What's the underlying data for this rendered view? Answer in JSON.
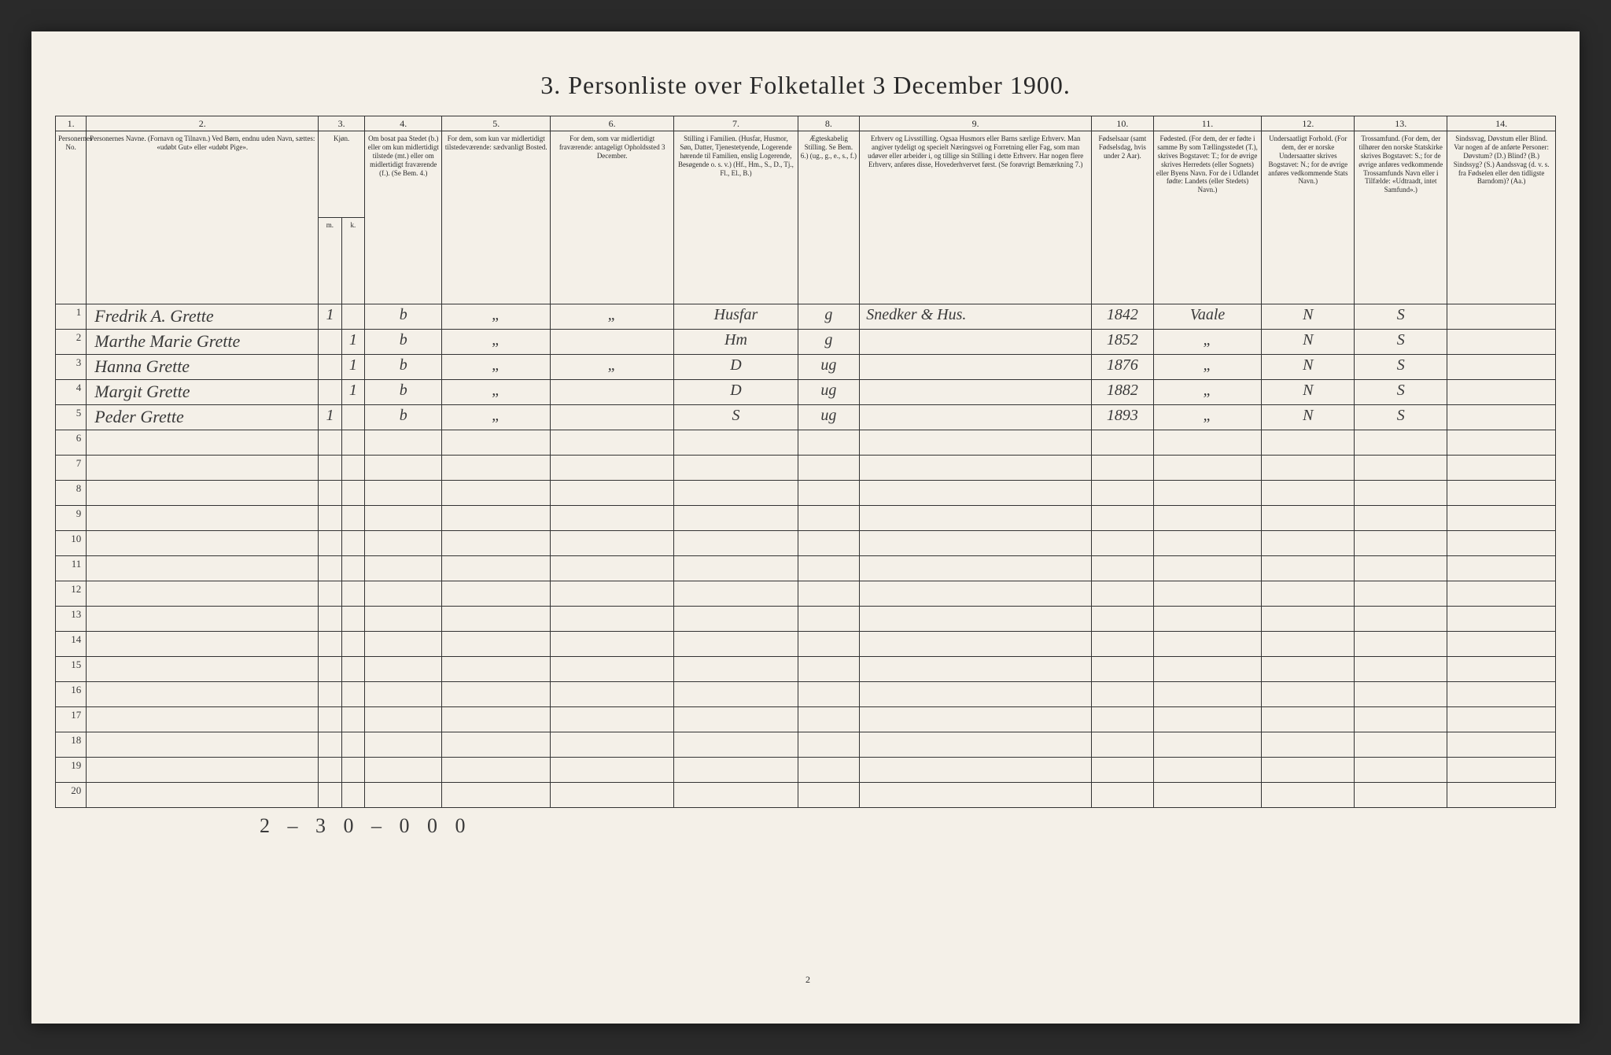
{
  "title": "3. Personliste over Folketallet 3 December 1900.",
  "page_number": "2",
  "footer_marks": "2 – 3   0 – 0    0   0",
  "col_numbers": [
    "1.",
    "2.",
    "3.",
    "4.",
    "5.",
    "6.",
    "7.",
    "8.",
    "9.",
    "10.",
    "11.",
    "12.",
    "13.",
    "14."
  ],
  "headers": {
    "c1": "Personernes No.",
    "c2": "Personernes Navne.\n(Fornavn og Tilnavn.)\nVed Børn, endnu uden Navn, sættes: «udøbt Gut» eller «udøbt Pige».",
    "c3": "Kjøn.",
    "c3a": "m.",
    "c3b": "k.",
    "c4": "Om bosat paa Stedet (b.) eller om kun midlertidigt tilstede (mt.) eller om midlertidigt fraværende (f.). (Se Bem. 4.)",
    "c5": "For dem, som kun var midlertidigt tilstedeværende: sædvanligt Bosted.",
    "c6": "For dem, som var midlertidigt fraværende: antageligt Opholdssted 3 December.",
    "c7": "Stilling i Familien.\n(Husfar, Husmor, Søn, Datter, Tjenestetyende, Logerende hørende til Familien, enslig Logerende, Besøgende o. s. v.)\n(Hf., Hm., S., D., Tj., Fl., El., B.)",
    "c8": "Ægteskabelig Stilling.\nSe Bem. 6.)\n(ug., g., e., s., f.)",
    "c9": "Erhverv og Livsstilling.\nOgsaa Husmors eller Barns særlige Erhverv.\nMan angiver tydeligt og specielt Næringsvei og Forretning eller Fag, som man udøver eller arbeider i, og tillige sin Stilling i dette Erhverv.\nHar nogen flere Erhverv, anføres disse, Hovederhvervet først.\n(Se forøvrigt Bemærkning 7.)",
    "c10": "Fødselsaar\n(samt Fødselsdag, hvis under 2 Aar).",
    "c11": "Fødested.\n(For dem, der er fødte i samme By som Tællingsstedet (T.), skrives Bogstavet: T.; for de øvrige skrives Herredets (eller Sognets) eller Byens Navn. For de i Udlandet fødte: Landets (eller Stedets) Navn.)",
    "c12": "Undersaatligt Forhold.\n(For dem, der er norske Undersaatter skrives Bogstavet: N.; for de øvrige anføres vedkommende Stats Navn.)",
    "c13": "Trossamfund.\n(For dem, der tilhører den norske Statskirke skrives Bogstavet: S.; for de øvrige anføres vedkommende Trossamfunds Navn eller i Tilfælde: «Udtraadt, intet Samfund».)",
    "c14": "Sindssvag, Døvstum eller Blind.\nVar nogen af de anførte Personer: Døvstum? (D.) Blind? (B.) Sindssyg? (S.) Aandssvag (d. v. s. fra Fødselen eller den tidligste Barndom)? (Aa.)"
  },
  "rows": [
    {
      "n": "1",
      "name": "Fredrik A. Grette",
      "m": "1",
      "k": "",
      "bosat": "b",
      "c5": "„",
      "c6": "„",
      "fam": "Husfar",
      "egte": "g",
      "erhverv": "Snedker & Hus.",
      "aar": "1842",
      "fsted": "Vaale",
      "und": "N",
      "tro": "S",
      "c14": ""
    },
    {
      "n": "2",
      "name": "Marthe Marie Grette",
      "m": "",
      "k": "1",
      "bosat": "b",
      "c5": "„",
      "c6": "",
      "fam": "Hm",
      "egte": "g",
      "erhverv": "",
      "aar": "1852",
      "fsted": "„",
      "und": "N",
      "tro": "S",
      "c14": ""
    },
    {
      "n": "3",
      "name": "Hanna Grette",
      "m": "",
      "k": "1",
      "bosat": "b",
      "c5": "„",
      "c6": "„",
      "fam": "D",
      "egte": "ug",
      "erhverv": "",
      "aar": "1876",
      "fsted": "„",
      "und": "N",
      "tro": "S",
      "c14": ""
    },
    {
      "n": "4",
      "name": "Margit Grette",
      "m": "",
      "k": "1",
      "bosat": "b",
      "c5": "„",
      "c6": "",
      "fam": "D",
      "egte": "ug",
      "erhverv": "",
      "aar": "1882",
      "fsted": "„",
      "und": "N",
      "tro": "S",
      "c14": ""
    },
    {
      "n": "5",
      "name": "Peder Grette",
      "m": "1",
      "k": "",
      "bosat": "b",
      "c5": "„",
      "c6": "",
      "fam": "S",
      "egte": "ug",
      "erhverv": "",
      "aar": "1893",
      "fsted": "„",
      "und": "N",
      "tro": "S",
      "c14": ""
    }
  ],
  "empty_rows": [
    "6",
    "7",
    "8",
    "9",
    "10",
    "11",
    "12",
    "13",
    "14",
    "15",
    "16",
    "17",
    "18",
    "19",
    "20"
  ],
  "colors": {
    "paper": "#f4f0e8",
    "ink": "#2a2a2a",
    "handwriting": "#3a3a3a",
    "border": "#333333",
    "background": "#1a1a1a"
  }
}
